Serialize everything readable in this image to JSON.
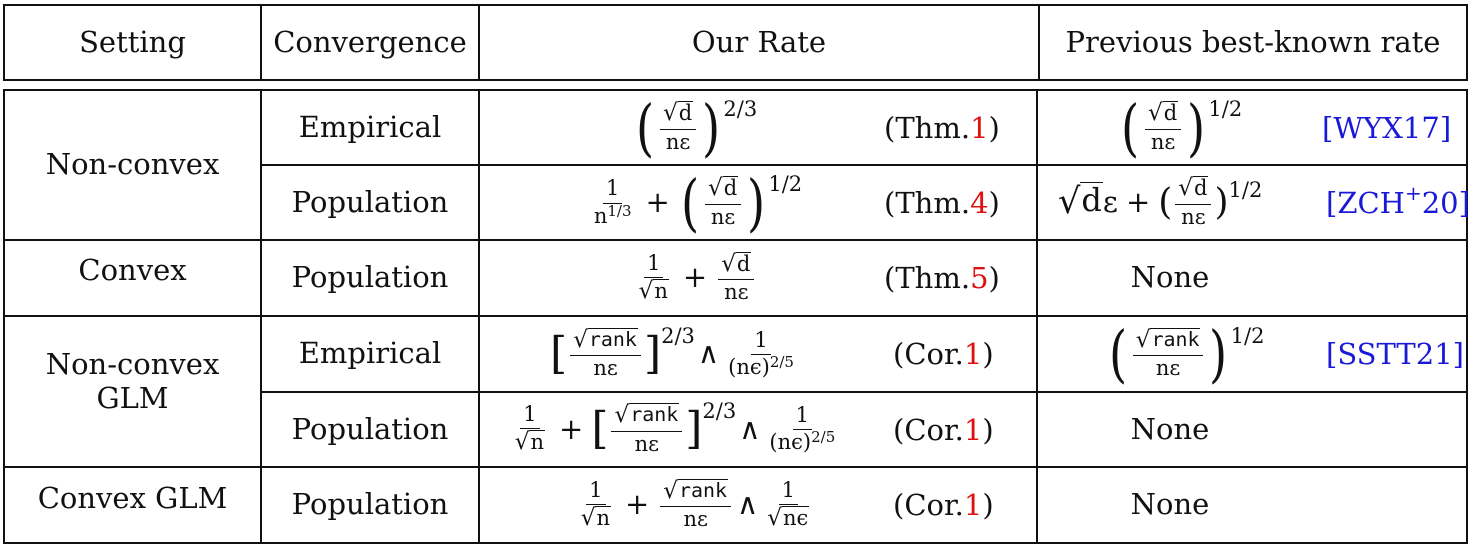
{
  "headers": {
    "setting": "Setting",
    "convergence": "Convergence",
    "our_rate": "Our Rate",
    "previous": "Previous best-known rate"
  },
  "rows": [
    {
      "setting": "Non-convex",
      "convergence": "Empirical",
      "rate_ref_label": "(Thm. ",
      "rate_ref_num": "1",
      "prev_ref": "[WYX17]"
    },
    {
      "convergence": "Population",
      "rate_ref_label": "(Thm. ",
      "rate_ref_num": "4",
      "prev_ref": "[ZCH",
      "prev_ref_sup": "+",
      "prev_ref_tail": "20]"
    },
    {
      "setting": "Convex",
      "convergence": "Population",
      "rate_ref_label": "(Thm. ",
      "rate_ref_num": "5",
      "prev": "None"
    },
    {
      "setting_line1": "Non-convex",
      "setting_line2": "GLM",
      "convergence": "Empirical",
      "rate_ref_label": "(Cor. ",
      "rate_ref_num": "1",
      "prev_ref": "[SSTT21]"
    },
    {
      "convergence": "Population",
      "rate_ref_label": "(Cor. ",
      "rate_ref_num": "1",
      "prev": "None"
    },
    {
      "setting": "Convex GLM",
      "convergence": "Population",
      "rate_ref_label": "(Cor. ",
      "rate_ref_num": "1",
      "prev": "None"
    }
  ],
  "math": {
    "d": "d",
    "n_eps": "nε",
    "n": "n",
    "one": "1",
    "exp_2_3": "2/3",
    "exp_1_2": "1/2",
    "exp_1_3": "1/3",
    "exp_2_5": "2/5",
    "n_exp_base": "n",
    "rank": "rank",
    "n_epsilon_paren": "(nϵ)",
    "n_epsilon": "nϵ",
    "eps": "ε",
    "plus": "+",
    "wedge": "∧"
  },
  "colors": {
    "reference_number": "#e01010",
    "citation": "#1a1ad6"
  }
}
